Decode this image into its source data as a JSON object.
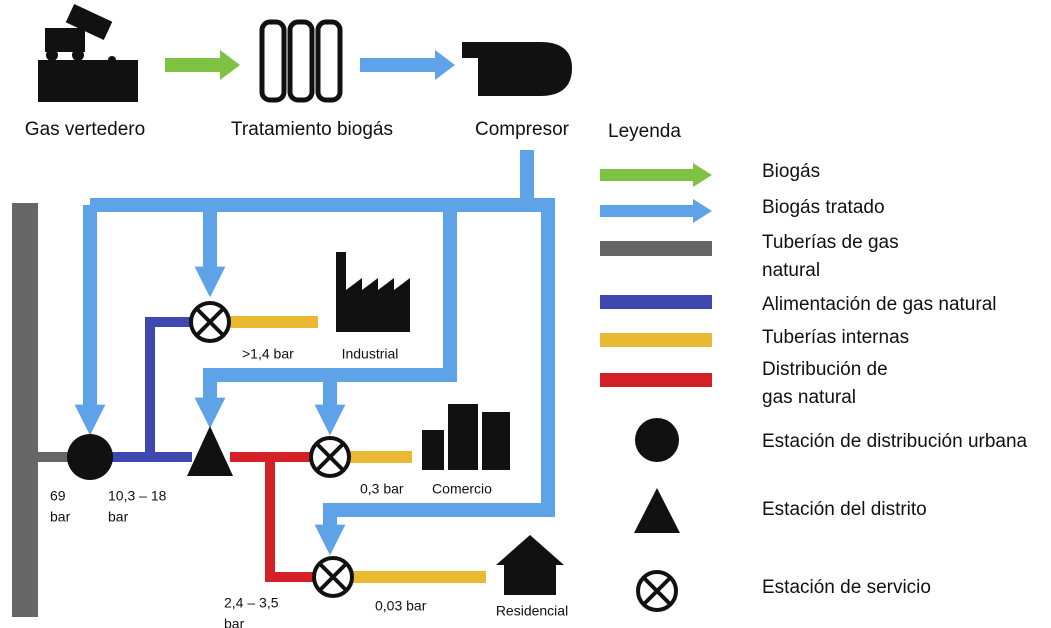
{
  "steps": [
    "Gas vertedero",
    "Tratamiento biogás",
    "Compresor"
  ],
  "legend": {
    "title": "Leyenda",
    "items": [
      [
        "Biogás"
      ],
      [
        "Biogás tratado"
      ],
      [
        "Tuberías de gas",
        "natural"
      ],
      [
        "Alimentación de gas natural"
      ],
      [
        "Tuberías internas"
      ],
      [
        "Distribución de",
        "gas natural"
      ],
      [
        "Estación de distribución urbana"
      ],
      [
        "Estación del distrito"
      ],
      [
        "Estación de servicio"
      ]
    ]
  },
  "pressures": [
    [
      "69",
      "bar"
    ],
    [
      "10,3 – 18",
      "bar"
    ],
    [
      "2,4 – 3,5",
      "bar"
    ],
    [
      ">1,4 bar"
    ],
    [
      "0,3 bar"
    ],
    [
      "0,03 bar"
    ]
  ],
  "consumers": [
    "Industrial",
    "Comercio",
    "Residencial"
  ]
}
